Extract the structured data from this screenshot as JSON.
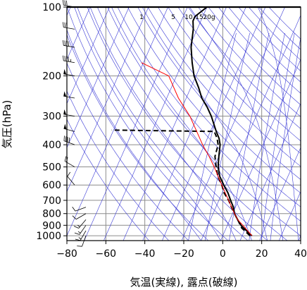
{
  "chart_data": {
    "type": "line",
    "xlabel": "気温(実線), 露点(破線)",
    "ylabel": "気圧(hPa)",
    "x_ticks": [
      -80,
      -60,
      -40,
      -20,
      0,
      20,
      40
    ],
    "y_ticks": [
      100,
      200,
      300,
      400,
      500,
      600,
      700,
      800,
      900,
      1000
    ],
    "xlim": [
      -80,
      40
    ],
    "ylim": [
      1050,
      100
    ],
    "y_scale": "log",
    "grid": true,
    "mixing_ratio_labels": [
      "1",
      "5",
      "10",
      "15",
      "20g"
    ],
    "series": [
      {
        "kind": "temperature",
        "style": "solid",
        "color": "#000000",
        "points": [
          [
            1000,
            15
          ],
          [
            975,
            13
          ],
          [
            925,
            9
          ],
          [
            900,
            7
          ],
          [
            850,
            4
          ],
          [
            800,
            1
          ],
          [
            750,
            -1
          ],
          [
            700,
            -4
          ],
          [
            650,
            -7
          ],
          [
            600,
            -11
          ],
          [
            550,
            -15
          ],
          [
            500,
            -18
          ],
          [
            450,
            -20
          ],
          [
            400,
            -22
          ],
          [
            375,
            -24
          ],
          [
            350,
            -27
          ],
          [
            300,
            -33
          ],
          [
            275,
            -37
          ],
          [
            250,
            -42
          ],
          [
            225,
            -46
          ],
          [
            200,
            -51
          ],
          [
            175,
            -55
          ],
          [
            150,
            -59
          ],
          [
            125,
            -62
          ],
          [
            115,
            -64
          ],
          [
            110,
            -64
          ],
          [
            100,
            -60
          ]
        ]
      },
      {
        "kind": "dewpoint",
        "style": "dashed",
        "color": "#000000",
        "points": [
          [
            1000,
            14
          ],
          [
            925,
            8
          ],
          [
            850,
            4
          ],
          [
            800,
            1
          ],
          [
            750,
            -2
          ],
          [
            700,
            -5
          ],
          [
            650,
            -9
          ],
          [
            600,
            -12
          ],
          [
            550,
            -16
          ],
          [
            500,
            -19
          ],
          [
            450,
            -22
          ],
          [
            400,
            -23
          ],
          [
            375,
            -25
          ],
          [
            350,
            -28
          ],
          [
            348,
            -50
          ],
          [
            345,
            -81
          ]
        ]
      },
      {
        "kind": "parcel",
        "style": "solid",
        "color": "#ff0000",
        "points": [
          [
            1000,
            15
          ],
          [
            900,
            8
          ],
          [
            850,
            4
          ],
          [
            800,
            1
          ],
          [
            700,
            -5
          ],
          [
            600,
            -12
          ],
          [
            500,
            -20
          ],
          [
            450,
            -25
          ],
          [
            400,
            -31
          ],
          [
            350,
            -37
          ],
          [
            300,
            -44
          ],
          [
            250,
            -54
          ],
          [
            200,
            -64
          ],
          [
            175,
            -81
          ]
        ]
      }
    ],
    "wind_barbs": [
      {
        "p": 1000,
        "speed_kt": 10,
        "dir_deg": 200
      },
      {
        "p": 950,
        "speed_kt": 15,
        "dir_deg": 210
      },
      {
        "p": 900,
        "speed_kt": 15,
        "dir_deg": 215
      },
      {
        "p": 850,
        "speed_kt": 15,
        "dir_deg": 220
      },
      {
        "p": 800,
        "speed_kt": 10,
        "dir_deg": 240
      },
      {
        "p": 750,
        "speed_kt": 10,
        "dir_deg": 250
      },
      {
        "p": 600,
        "speed_kt": 10,
        "dir_deg": 320
      },
      {
        "p": 500,
        "speed_kt": 20,
        "dir_deg": 300
      },
      {
        "p": 400,
        "speed_kt": 40,
        "dir_deg": 290
      },
      {
        "p": 350,
        "speed_kt": 50,
        "dir_deg": 285
      },
      {
        "p": 300,
        "speed_kt": 50,
        "dir_deg": 280
      },
      {
        "p": 250,
        "speed_kt": 50,
        "dir_deg": 280
      },
      {
        "p": 200,
        "speed_kt": 50,
        "dir_deg": 280
      },
      {
        "p": 175,
        "speed_kt": 45,
        "dir_deg": 280
      },
      {
        "p": 150,
        "speed_kt": 40,
        "dir_deg": 280
      },
      {
        "p": 125,
        "speed_kt": 30,
        "dir_deg": 280
      },
      {
        "p": 100,
        "speed_kt": 30,
        "dir_deg": 280
      }
    ],
    "colors": {
      "grid": "#8c8c8c",
      "isotherm": "#3b3bd6",
      "dry_adiabat": "#3b3bd6",
      "moist_adiabat": "#3b3bd6",
      "mixing_ratio": "#3b3bd6",
      "temperature": "#000000",
      "dewpoint": "#000000",
      "parcel": "#ff0000"
    }
  }
}
